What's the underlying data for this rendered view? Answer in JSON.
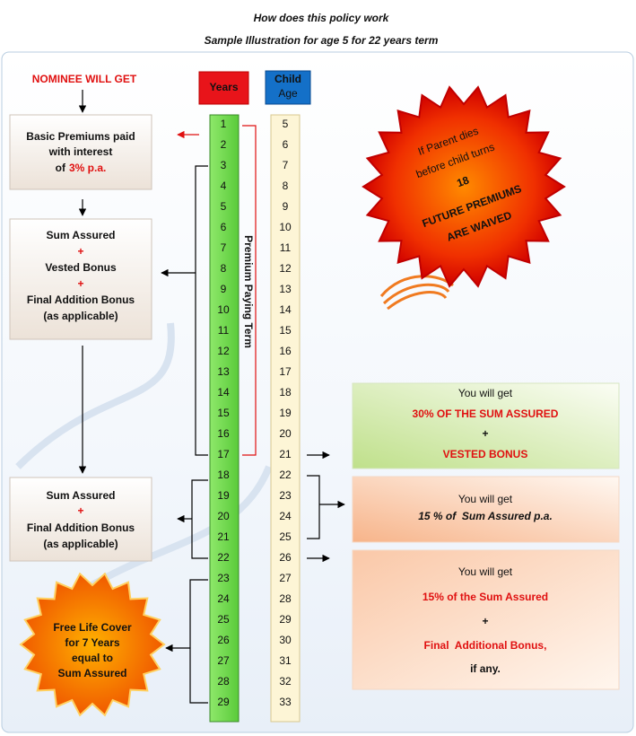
{
  "header": {
    "title": "How does this policy work",
    "subtitle": "Sample Illustration for age 5 for 22 years term"
  },
  "nominee_label": "NOMINEE WILL GET",
  "columns": {
    "years_header": "Years",
    "age_header": [
      "Child",
      "Age"
    ],
    "years": [
      1,
      2,
      3,
      4,
      5,
      6,
      7,
      8,
      9,
      10,
      11,
      12,
      13,
      14,
      15,
      16,
      17,
      18,
      19,
      20,
      21,
      22,
      23,
      24,
      25,
      26,
      27,
      28,
      29
    ],
    "ages": [
      5,
      6,
      7,
      8,
      9,
      10,
      11,
      12,
      13,
      14,
      15,
      16,
      17,
      18,
      19,
      20,
      21,
      22,
      23,
      24,
      25,
      26,
      27,
      28,
      29,
      30,
      31,
      32,
      33
    ],
    "term_label": "Premium Paying Term"
  },
  "left_boxes": [
    {
      "lines": [
        "Basic Premiums paid",
        "with interest",
        "of",
        "3% p.a."
      ]
    },
    {
      "lines": [
        "Sum Assured",
        "+",
        "Vested Bonus",
        "+",
        "Final Addition Bonus",
        "(as applicable)"
      ]
    },
    {
      "lines": [
        "Sum Assured",
        "+",
        "Final Addition Bonus",
        "(as applicable)"
      ]
    }
  ],
  "life_cover": {
    "lines": [
      "Free Life Cover",
      "for 7 Years",
      "equal to",
      "Sum Assured"
    ]
  },
  "waiver": {
    "lines": [
      "If Parent dies",
      "before child turns",
      "18",
      "FUTURE PREMIUMS",
      "ARE WAIVED"
    ]
  },
  "right_boxes": [
    {
      "lines": [
        "You will get",
        "30% OF THE SUM ASSURED",
        "+",
        "VESTED BONUS"
      ]
    },
    {
      "lines": [
        "You will get",
        "15 % of  Sum Assured p.a."
      ]
    },
    {
      "lines": [
        "You will get",
        "15% of the Sum Assured",
        "+",
        "Final  Additional Bonus,",
        "if any."
      ]
    }
  ]
}
